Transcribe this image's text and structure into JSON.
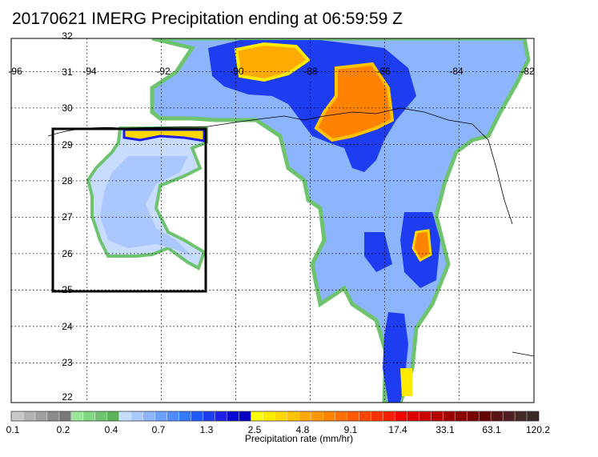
{
  "title": "20170621 IMERG Precipitation ending at 06:59:59 Z",
  "map": {
    "lon_labels": [
      "-96",
      "-94",
      "-92",
      "-90",
      "-88",
      "-86",
      "-84",
      "-82"
    ],
    "lat_labels": [
      "32",
      "31",
      "30",
      "29",
      "28",
      "27",
      "26",
      "25",
      "24",
      "23",
      "22"
    ],
    "lon_range": [
      -96,
      -82
    ],
    "lat_range": [
      22,
      32
    ],
    "grid": "dotted"
  },
  "colorbar": {
    "title": "Precipitation rate (mm/hr)",
    "tick_labels": [
      "0.1",
      "0.2",
      "0.4",
      "0.7",
      "1.3",
      "2.5",
      "4.8",
      "9.1",
      "17.4",
      "33.1",
      "63.1",
      "120.2"
    ],
    "colors": [
      "#c8c8c8",
      "#b4b4b4",
      "#a0a0a0",
      "#8c8c8c",
      "#787878",
      "#9ae69a",
      "#82d782",
      "#6ec36e",
      "#5ab45a",
      "#c8dcff",
      "#aac8ff",
      "#8cb4ff",
      "#6ea0ff",
      "#508cff",
      "#3278ff",
      "#1e5aff",
      "#1e3cf0",
      "#1e1ee6",
      "#0a0ad2",
      "#0000be",
      "#ffff00",
      "#ffeb00",
      "#ffd700",
      "#ffc300",
      "#ffaa00",
      "#ff9600",
      "#ff8200",
      "#ff6e00",
      "#ff5a00",
      "#ff4600",
      "#ff3200",
      "#ff1e00",
      "#f00000",
      "#dc0000",
      "#c80000",
      "#b40000",
      "#a00000",
      "#8c0000",
      "#780000",
      "#640000",
      "#5a1414",
      "#501e1e",
      "#462828",
      "#3c2828"
    ]
  }
}
